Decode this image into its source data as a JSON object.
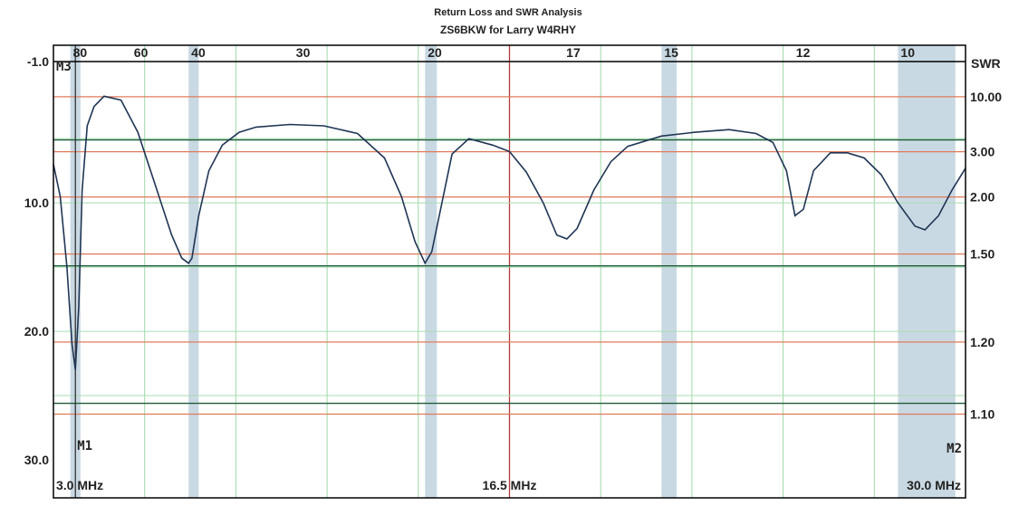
{
  "chart_data": {
    "type": "line",
    "title": "Return Loss and SWR Analysis",
    "subtitle": "ZS6BKW for Larry W4RHY",
    "x_range": [
      3.0,
      30.0
    ],
    "x_unit": "MHz",
    "x_labels": [
      "3.0 MHz",
      "16.5 MHz",
      "30.0 MHz"
    ],
    "y_left_range": [
      -1.0,
      30.0
    ],
    "y_left_ticks": [
      "-1.0",
      "10.0",
      "20.0",
      "30.0"
    ],
    "y_left_tick_values": [
      -1.0,
      10.0,
      20.0,
      30.0
    ],
    "y_right_label": "SWR",
    "swr_ticks": [
      {
        "label": "10.00",
        "return_loss": 1.74
      },
      {
        "label": "3.00",
        "return_loss": 6.02
      },
      {
        "label": "2.00",
        "return_loss": 9.54
      },
      {
        "label": "1.50",
        "return_loss": 13.98
      },
      {
        "label": "1.20",
        "return_loss": 20.83
      },
      {
        "label": "1.10",
        "return_loss": 26.44
      }
    ],
    "green_hlines": [
      5.1,
      14.9,
      25.6
    ],
    "grid": true,
    "bands": [
      {
        "label": "80",
        "start": 3.5,
        "end": 3.8
      },
      {
        "label": "60",
        "label_freq": 5.3
      },
      {
        "label": "40",
        "start": 7.0,
        "end": 7.3
      },
      {
        "label": "30",
        "label_freq": 10.1
      },
      {
        "label": "20",
        "start": 14.0,
        "end": 14.35
      },
      {
        "label": "17",
        "label_freq": 18.1
      },
      {
        "label": "15",
        "start": 21.0,
        "end": 21.45
      },
      {
        "label": "12",
        "label_freq": 24.9
      },
      {
        "label": "10",
        "start": 28.0,
        "end": 29.7
      }
    ],
    "markers": [
      {
        "label": "M1",
        "freq": 3.65
      },
      {
        "label": "M2",
        "freq": 30.0
      },
      {
        "label": "M3",
        "freq": 3.4
      }
    ],
    "series": [
      {
        "x": [
          3.0,
          3.2,
          3.4,
          3.55,
          3.65,
          3.75,
          3.85,
          4.0,
          4.2,
          4.5,
          5.0,
          5.5,
          6.0,
          6.5,
          6.8,
          7.0,
          7.1,
          7.3,
          7.6,
          8.0,
          8.5,
          9.0,
          10.0,
          11.0,
          12.0,
          12.8,
          13.3,
          13.7,
          14.0,
          14.2,
          14.5,
          14.8,
          15.3,
          16.0,
          16.5,
          17.0,
          17.5,
          17.9,
          18.2,
          18.5,
          19.0,
          19.5,
          20.0,
          21.0,
          22.0,
          23.0,
          23.8,
          24.3,
          24.7,
          24.95,
          25.2,
          25.5,
          26.0,
          26.5,
          27.0,
          27.5,
          28.0,
          28.5,
          28.8,
          29.2,
          29.6,
          30.0
        ],
        "y": [
          7.0,
          9.5,
          15.0,
          21.0,
          23.0,
          18.0,
          9.0,
          4.0,
          2.5,
          1.7,
          2.0,
          4.5,
          8.5,
          12.5,
          14.3,
          14.7,
          14.3,
          11.0,
          7.5,
          5.5,
          4.5,
          4.1,
          3.9,
          4.0,
          4.6,
          6.5,
          9.5,
          13.0,
          14.7,
          13.8,
          10.0,
          6.2,
          5.0,
          5.5,
          6.0,
          7.6,
          10.0,
          12.5,
          12.8,
          12.0,
          9.0,
          6.8,
          5.6,
          4.8,
          4.5,
          4.3,
          4.6,
          5.3,
          7.5,
          11.0,
          10.5,
          7.5,
          6.1,
          6.1,
          6.5,
          7.8,
          10.0,
          11.8,
          12.1,
          11.0,
          9.0,
          7.3
        ]
      }
    ]
  }
}
